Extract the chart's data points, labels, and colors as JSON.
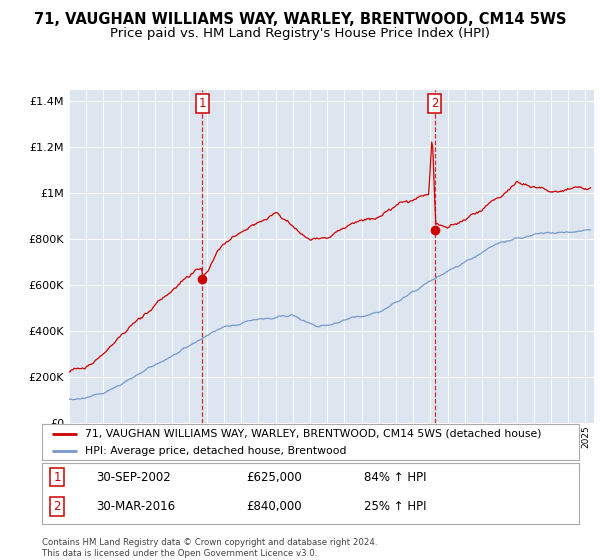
{
  "title_line1": "71, VAUGHAN WILLIAMS WAY, WARLEY, BRENTWOOD, CM14 5WS",
  "title_line2": "Price paid vs. HM Land Registry's House Price Index (HPI)",
  "legend_line1": "71, VAUGHAN WILLIAMS WAY, WARLEY, BRENTWOOD, CM14 5WS (detached house)",
  "legend_line2": "HPI: Average price, detached house, Brentwood",
  "annotation1_label": "1",
  "annotation1_date": "30-SEP-2002",
  "annotation1_price": "£625,000",
  "annotation1_hpi": "84% ↑ HPI",
  "annotation2_label": "2",
  "annotation2_date": "30-MAR-2016",
  "annotation2_price": "£840,000",
  "annotation2_hpi": "25% ↑ HPI",
  "footer": "Contains HM Land Registry data © Crown copyright and database right 2024.\nThis data is licensed under the Open Government Licence v3.0.",
  "sale1_year": 2002.75,
  "sale1_price": 625000,
  "sale2_year": 2016.25,
  "sale2_price": 840000,
  "red_color": "#cc0000",
  "blue_color": "#7799cc",
  "bg_color": "#dde6f0",
  "ylim_max": 1450000,
  "xlim_min": 1995,
  "xlim_max": 2025.5
}
